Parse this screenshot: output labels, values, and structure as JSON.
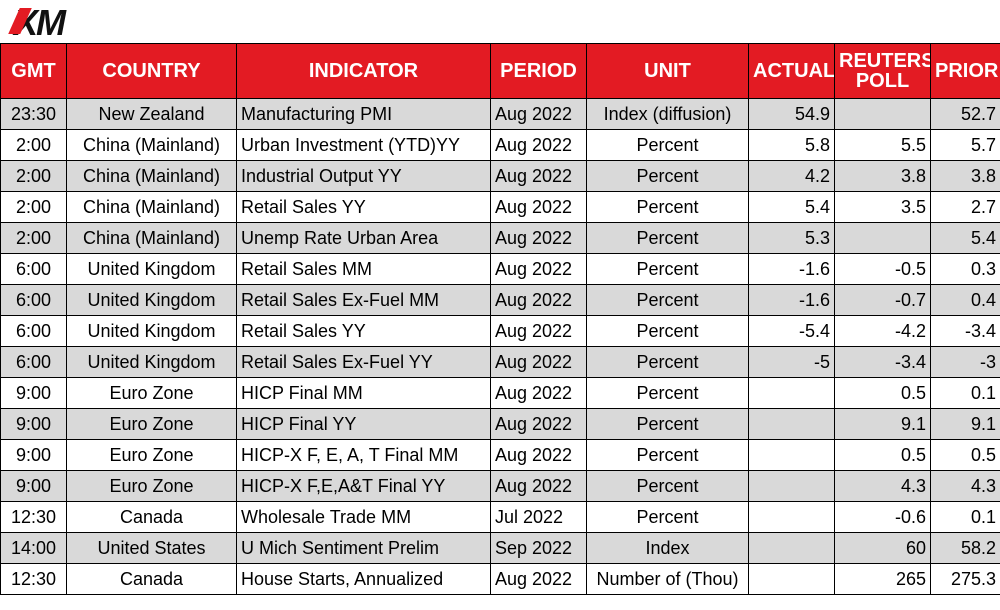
{
  "logo": {
    "text": "XM"
  },
  "columns": [
    "GMT",
    "COUNTRY",
    "INDICATOR",
    "PERIOD",
    "UNIT",
    "ACTUAL",
    "REUTERS POLL",
    "PRIOR"
  ],
  "rows": [
    {
      "gmt": "23:30",
      "country": "New Zealand",
      "indicator": "Manufacturing PMI",
      "period": "Aug 2022",
      "unit": "Index (diffusion)",
      "actual": "54.9",
      "poll": "",
      "prior": "52.7"
    },
    {
      "gmt": "2:00",
      "country": "China (Mainland)",
      "indicator": "Urban Investment (YTD)YY",
      "period": "Aug 2022",
      "unit": "Percent",
      "actual": "5.8",
      "poll": "5.5",
      "prior": "5.7"
    },
    {
      "gmt": "2:00",
      "country": "China (Mainland)",
      "indicator": "Industrial Output YY",
      "period": "Aug 2022",
      "unit": "Percent",
      "actual": "4.2",
      "poll": "3.8",
      "prior": "3.8"
    },
    {
      "gmt": "2:00",
      "country": "China (Mainland)",
      "indicator": "Retail Sales YY",
      "period": "Aug 2022",
      "unit": "Percent",
      "actual": "5.4",
      "poll": "3.5",
      "prior": "2.7"
    },
    {
      "gmt": "2:00",
      "country": "China (Mainland)",
      "indicator": "Unemp Rate Urban Area",
      "period": "Aug 2022",
      "unit": "Percent",
      "actual": "5.3",
      "poll": "",
      "prior": "5.4"
    },
    {
      "gmt": "6:00",
      "country": "United Kingdom",
      "indicator": "Retail Sales MM",
      "period": "Aug 2022",
      "unit": "Percent",
      "actual": "-1.6",
      "poll": "-0.5",
      "prior": "0.3"
    },
    {
      "gmt": "6:00",
      "country": "United Kingdom",
      "indicator": "Retail Sales Ex-Fuel MM",
      "period": "Aug 2022",
      "unit": "Percent",
      "actual": "-1.6",
      "poll": "-0.7",
      "prior": "0.4"
    },
    {
      "gmt": "6:00",
      "country": "United Kingdom",
      "indicator": "Retail Sales YY",
      "period": "Aug 2022",
      "unit": "Percent",
      "actual": "-5.4",
      "poll": "-4.2",
      "prior": "-3.4"
    },
    {
      "gmt": "6:00",
      "country": "United Kingdom",
      "indicator": "Retail Sales Ex-Fuel YY",
      "period": "Aug 2022",
      "unit": "Percent",
      "actual": "-5",
      "poll": "-3.4",
      "prior": "-3"
    },
    {
      "gmt": "9:00",
      "country": "Euro Zone",
      "indicator": "HICP Final MM",
      "period": "Aug 2022",
      "unit": "Percent",
      "actual": "",
      "poll": "0.5",
      "prior": "0.1"
    },
    {
      "gmt": "9:00",
      "country": "Euro Zone",
      "indicator": "HICP Final YY",
      "period": "Aug 2022",
      "unit": "Percent",
      "actual": "",
      "poll": "9.1",
      "prior": "9.1"
    },
    {
      "gmt": "9:00",
      "country": "Euro Zone",
      "indicator": "HICP-X F, E, A, T Final MM",
      "period": "Aug 2022",
      "unit": "Percent",
      "actual": "",
      "poll": "0.5",
      "prior": "0.5"
    },
    {
      "gmt": "9:00",
      "country": "Euro Zone",
      "indicator": "HICP-X F,E,A&T Final YY",
      "period": "Aug 2022",
      "unit": "Percent",
      "actual": "",
      "poll": "4.3",
      "prior": "4.3"
    },
    {
      "gmt": "12:30",
      "country": "Canada",
      "indicator": "Wholesale Trade MM",
      "period": "Jul 2022",
      "unit": "Percent",
      "actual": "",
      "poll": "-0.6",
      "prior": "0.1"
    },
    {
      "gmt": "14:00",
      "country": "United States",
      "indicator": "U Mich Sentiment Prelim",
      "period": "Sep 2022",
      "unit": "Index",
      "actual": "",
      "poll": "60",
      "prior": "58.2"
    },
    {
      "gmt": "12:30",
      "country": "Canada",
      "indicator": "House Starts, Annualized",
      "period": "Aug 2022",
      "unit": "Number of (Thou)",
      "actual": "",
      "poll": "265",
      "prior": "275.3"
    }
  ]
}
